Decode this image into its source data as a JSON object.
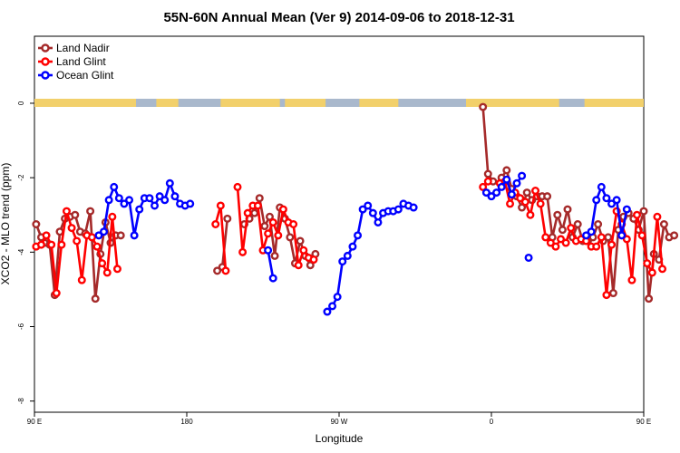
{
  "chart_data": {
    "type": "line",
    "title": "55N-60N Annual Mean (Ver 9)   2014-09-06 to 2018-12-31",
    "xlabel": "Longitude",
    "ylabel": "XCO2 - MLO trend (ppm)",
    "xlim": [
      90,
      450
    ],
    "ylim": [
      -8.3,
      1.8
    ],
    "x_ticks": [
      {
        "value": 90,
        "label": "90 E"
      },
      {
        "value": 180,
        "label": "180"
      },
      {
        "value": 270,
        "label": "90 W"
      },
      {
        "value": 360,
        "label": "0"
      },
      {
        "value": 450,
        "label": "90 E"
      },
      {
        "value": 540,
        "label": "180"
      }
    ],
    "y_ticks": [
      {
        "value": 0,
        "label": "0"
      },
      {
        "value": -2,
        "label": "-2"
      },
      {
        "value": -4,
        "label": "-4"
      },
      {
        "value": -6,
        "label": "-6"
      },
      {
        "value": -8,
        "label": "-8"
      }
    ],
    "legend_position": "top-left",
    "grid": false,
    "map_strip_colors": {
      "land": "#f2d06b",
      "ocean": "#a9b8cc"
    },
    "series": [
      {
        "name": "Land Nadir",
        "color": "#a52a2a",
        "segments": [
          [
            [
              91,
              -3.25
            ],
            [
              94,
              -3.6
            ],
            [
              96,
              -3.75
            ],
            [
              99,
              -3.8
            ],
            [
              102,
              -5.15
            ],
            [
              105,
              -3.45
            ],
            [
              108,
              -3.1
            ],
            [
              111,
              -3.05
            ],
            [
              114,
              -3.0
            ],
            [
              117,
              -3.45
            ],
            [
              120,
              -3.5
            ],
            [
              123,
              -2.9
            ],
            [
              126,
              -5.25
            ],
            [
              129,
              -4.05
            ],
            [
              132,
              -3.2
            ],
            [
              135,
              -3.75
            ],
            [
              138,
              -3.55
            ],
            [
              141,
              -3.55
            ]
          ],
          [
            [
              198,
              -4.5
            ],
            [
              201,
              -4.4
            ],
            [
              204,
              -3.1
            ]
          ],
          [
            [
              214,
              -3.25
            ],
            [
              217,
              -3.1
            ],
            [
              220,
              -2.95
            ],
            [
              223,
              -2.55
            ],
            [
              226,
              -3.3
            ],
            [
              229,
              -3.05
            ],
            [
              232,
              -4.1
            ],
            [
              235,
              -2.8
            ],
            [
              238,
              -3.1
            ],
            [
              241,
              -3.6
            ],
            [
              244,
              -4.3
            ],
            [
              247,
              -3.7
            ],
            [
              250,
              -4.1
            ],
            [
              253,
              -4.35
            ],
            [
              256,
              -4.05
            ]
          ],
          [
            [
              355,
              -0.1
            ],
            [
              358,
              -1.9
            ],
            [
              361,
              -2.1
            ]
          ],
          [
            [
              366,
              -2.0
            ],
            [
              369,
              -1.8
            ],
            [
              372,
              -2.3
            ],
            [
              375,
              -2.5
            ],
            [
              378,
              -2.8
            ],
            [
              381,
              -2.4
            ],
            [
              384,
              -2.6
            ],
            [
              387,
              -2.5
            ],
            [
              390,
              -2.5
            ],
            [
              393,
              -2.5
            ],
            [
              396,
              -3.6
            ],
            [
              399,
              -3.0
            ],
            [
              402,
              -3.4
            ],
            [
              405,
              -2.85
            ],
            [
              408,
              -3.6
            ],
            [
              411,
              -3.25
            ],
            [
              414,
              -3.7
            ],
            [
              417,
              -3.7
            ],
            [
              420,
              -3.6
            ],
            [
              423,
              -3.25
            ],
            [
              426,
              -3.7
            ],
            [
              429,
              -3.6
            ],
            [
              432,
              -5.1
            ],
            [
              435,
              -3.4
            ],
            [
              438,
              -3.05
            ],
            [
              441,
              -2.95
            ],
            [
              444,
              -3.1
            ],
            [
              447,
              -3.4
            ],
            [
              450,
              -2.9
            ],
            [
              453,
              -5.25
            ],
            [
              456,
              -4.05
            ],
            [
              459,
              -4.2
            ],
            [
              462,
              -3.25
            ],
            [
              465,
              -3.6
            ],
            [
              468,
              -3.55
            ]
          ]
        ]
      },
      {
        "name": "Land Glint",
        "color": "#ff0000",
        "segments": [
          [
            [
              91,
              -3.85
            ],
            [
              94,
              -3.8
            ],
            [
              97,
              -3.55
            ],
            [
              100,
              -3.8
            ],
            [
              103,
              -5.1
            ],
            [
              106,
              -3.8
            ],
            [
              109,
              -2.9
            ],
            [
              112,
              -3.35
            ],
            [
              115,
              -3.7
            ],
            [
              118,
              -4.75
            ],
            [
              121,
              -3.55
            ],
            [
              124,
              -3.6
            ],
            [
              127,
              -3.85
            ],
            [
              130,
              -4.3
            ],
            [
              133,
              -4.55
            ],
            [
              136,
              -3.05
            ],
            [
              139,
              -4.45
            ]
          ],
          [
            [
              197,
              -3.25
            ],
            [
              200,
              -2.75
            ],
            [
              203,
              -4.5
            ]
          ],
          [
            [
              210,
              -2.25
            ],
            [
              213,
              -4.0
            ],
            [
              216,
              -2.95
            ],
            [
              219,
              -2.75
            ],
            [
              222,
              -2.75
            ],
            [
              225,
              -3.95
            ],
            [
              228,
              -3.5
            ],
            [
              231,
              -3.2
            ],
            [
              234,
              -3.55
            ],
            [
              237,
              -2.85
            ],
            [
              240,
              -3.2
            ],
            [
              243,
              -3.25
            ],
            [
              246,
              -4.35
            ],
            [
              249,
              -3.95
            ],
            [
              252,
              -4.15
            ],
            [
              255,
              -4.2
            ]
          ],
          [
            [
              355,
              -2.25
            ],
            [
              358,
              -2.1
            ]
          ],
          [
            [
              365,
              -2.15
            ],
            [
              368,
              -2.1
            ],
            [
              371,
              -2.7
            ],
            [
              374,
              -2.4
            ],
            [
              377,
              -2.55
            ],
            [
              380,
              -2.65
            ],
            [
              383,
              -3.0
            ],
            [
              386,
              -2.35
            ],
            [
              389,
              -2.7
            ],
            [
              392,
              -3.6
            ],
            [
              395,
              -3.75
            ],
            [
              398,
              -3.85
            ],
            [
              401,
              -3.65
            ],
            [
              404,
              -3.75
            ],
            [
              407,
              -3.35
            ],
            [
              410,
              -3.7
            ],
            [
              413,
              -3.65
            ],
            [
              416,
              -3.7
            ],
            [
              419,
              -3.85
            ],
            [
              422,
              -3.85
            ],
            [
              425,
              -3.6
            ],
            [
              428,
              -5.15
            ],
            [
              431,
              -3.8
            ],
            [
              434,
              -2.9
            ],
            [
              437,
              -3.25
            ],
            [
              440,
              -3.65
            ],
            [
              443,
              -4.75
            ],
            [
              446,
              -3.0
            ],
            [
              449,
              -3.55
            ],
            [
              452,
              -4.3
            ],
            [
              455,
              -4.55
            ],
            [
              458,
              -3.05
            ],
            [
              461,
              -4.45
            ]
          ]
        ]
      },
      {
        "name": "Ocean Glint",
        "color": "#0000ff",
        "segments": [
          [
            [
              128,
              -3.55
            ],
            [
              131,
              -3.45
            ],
            [
              134,
              -2.6
            ],
            [
              137,
              -2.25
            ],
            [
              140,
              -2.55
            ],
            [
              143,
              -2.7
            ],
            [
              146,
              -2.6
            ],
            [
              149,
              -3.55
            ],
            [
              152,
              -2.85
            ],
            [
              155,
              -2.55
            ],
            [
              158,
              -2.55
            ],
            [
              161,
              -2.75
            ],
            [
              164,
              -2.5
            ],
            [
              167,
              -2.6
            ],
            [
              170,
              -2.15
            ],
            [
              173,
              -2.5
            ],
            [
              176,
              -2.7
            ],
            [
              179,
              -2.75
            ],
            [
              182,
              -2.7
            ]
          ],
          [
            [
              228,
              -3.95
            ],
            [
              231,
              -4.7
            ]
          ],
          [
            [
              263,
              -5.6
            ],
            [
              266,
              -5.45
            ],
            [
              269,
              -5.2
            ],
            [
              272,
              -4.25
            ],
            [
              275,
              -4.1
            ],
            [
              278,
              -3.85
            ],
            [
              281,
              -3.55
            ],
            [
              284,
              -2.85
            ],
            [
              287,
              -2.75
            ],
            [
              290,
              -2.95
            ],
            [
              293,
              -3.2
            ],
            [
              296,
              -2.95
            ],
            [
              299,
              -2.9
            ],
            [
              302,
              -2.9
            ],
            [
              305,
              -2.85
            ],
            [
              308,
              -2.7
            ],
            [
              311,
              -2.75
            ],
            [
              314,
              -2.8
            ]
          ],
          [
            [
              357,
              -2.4
            ],
            [
              360,
              -2.5
            ],
            [
              363,
              -2.4
            ],
            [
              366,
              -2.25
            ],
            [
              369,
              -2.05
            ],
            [
              372,
              -2.45
            ],
            [
              375,
              -2.15
            ],
            [
              378,
              -1.95
            ]
          ],
          [
            [
              382,
              -4.15
            ]
          ],
          [
            [
              416,
              -3.55
            ],
            [
              419,
              -3.45
            ],
            [
              422,
              -2.6
            ],
            [
              425,
              -2.25
            ],
            [
              428,
              -2.55
            ],
            [
              431,
              -2.7
            ],
            [
              434,
              -2.6
            ],
            [
              437,
              -3.55
            ],
            [
              440,
              -2.85
            ]
          ]
        ]
      }
    ]
  }
}
